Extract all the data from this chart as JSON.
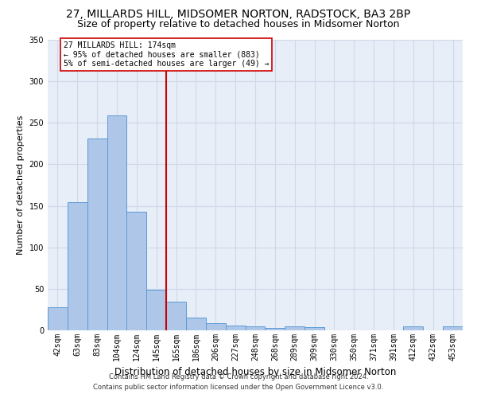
{
  "title": "27, MILLARDS HILL, MIDSOMER NORTON, RADSTOCK, BA3 2BP",
  "subtitle": "Size of property relative to detached houses in Midsomer Norton",
  "xlabel": "Distribution of detached houses by size in Midsomer Norton",
  "ylabel": "Number of detached properties",
  "footer": "Contains HM Land Registry data © Crown copyright and database right 2024.\nContains public sector information licensed under the Open Government Licence v3.0.",
  "categories": [
    "42sqm",
    "63sqm",
    "83sqm",
    "104sqm",
    "124sqm",
    "145sqm",
    "165sqm",
    "186sqm",
    "206sqm",
    "227sqm",
    "248sqm",
    "268sqm",
    "289sqm",
    "309sqm",
    "330sqm",
    "350sqm",
    "371sqm",
    "391sqm",
    "412sqm",
    "432sqm",
    "453sqm"
  ],
  "values": [
    28,
    154,
    231,
    259,
    143,
    49,
    35,
    15,
    9,
    6,
    5,
    3,
    5,
    4,
    0,
    0,
    0,
    0,
    5,
    0,
    5
  ],
  "bar_color": "#aec6e8",
  "bar_edge_color": "#5b9bd5",
  "vline_x": 5.5,
  "annotation_line1": "27 MILLARDS HILL: 174sqm",
  "annotation_line2": "← 95% of detached houses are smaller (883)",
  "annotation_line3": "5% of semi-detached houses are larger (49) →",
  "annotation_box_color": "#ffffff",
  "annotation_box_edge": "#cc0000",
  "vline_color": "#cc0000",
  "ylim": [
    0,
    350
  ],
  "yticks": [
    0,
    50,
    100,
    150,
    200,
    250,
    300,
    350
  ],
  "grid_color": "#d0d8e8",
  "bg_color": "#e8eef8",
  "title_fontsize": 10,
  "subtitle_fontsize": 9,
  "xlabel_fontsize": 8.5,
  "ylabel_fontsize": 8,
  "footer_fontsize": 6,
  "tick_fontsize": 7,
  "annot_fontsize": 7
}
